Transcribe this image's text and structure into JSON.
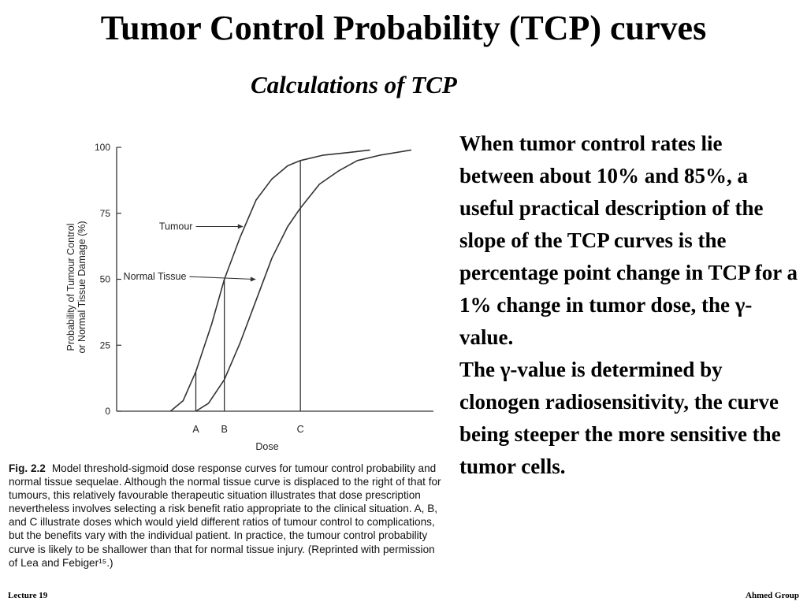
{
  "slide": {
    "title": "Tumor Control Probability (TCP) curves",
    "subtitle": "Calculations of TCP",
    "paragraphs": [
      "When tumor control rates lie between about 10% and 85%, a useful practical description of the slope of the TCP curves is the percentage point change in TCP for a 1% change in tumor dose, the γ-value.",
      "The γ-value is determined by clonogen radiosensitivity, the curve being steeper the more sensitive the tumor cells."
    ],
    "footer_left": "Lecture 19",
    "footer_right": "Ahmed Group"
  },
  "figure": {
    "caption_label": "Fig. 2.2",
    "caption_text": "Model threshold-sigmoid dose response curves for tumour control probability and normal tissue sequelae. Although the normal tissue curve is displaced to the right of that for tumours, this relatively favourable therapeutic situation illustrates that dose prescription nevertheless involves selecting a risk benefit ratio appropriate to the clinical situation. A, B, and C illustrate doses which would yield different ratios of tumour control to complications, but the benefits vary with the individual patient. In practice, the tumour control probability curve is likely to be shallower than that for normal tissue injury. (Reprinted with permission of Lea and Febiger¹⁵.)"
  },
  "chart_data": {
    "type": "line",
    "ylabel": "Probability of Tumour Control or Normal Tissue Damage (%)",
    "xlabel": "Dose",
    "ylim": [
      0,
      100
    ],
    "yticks": [
      0,
      25,
      50,
      75,
      100
    ],
    "xticks": [
      "A",
      "B",
      "C"
    ],
    "x_values": {
      "A": 2.5,
      "B": 3.4,
      "C": 5.8
    },
    "xlim": [
      0,
      10
    ],
    "grid": false,
    "series": [
      {
        "name": "Tumour",
        "x": [
          1.7,
          2.1,
          2.5,
          3.0,
          3.4,
          3.9,
          4.4,
          4.9,
          5.4,
          5.8,
          6.5,
          7.3,
          8.0
        ],
        "y": [
          0,
          4,
          15,
          33,
          50,
          66,
          80,
          88,
          93,
          95,
          97,
          98,
          99
        ],
        "label_anchor": [
          4.0,
          70
        ]
      },
      {
        "name": "Normal Tissue",
        "x": [
          2.5,
          2.9,
          3.4,
          3.9,
          4.4,
          4.9,
          5.4,
          5.8,
          6.4,
          7.0,
          7.6,
          8.3,
          9.3
        ],
        "y": [
          0,
          3,
          12,
          26,
          42,
          58,
          70,
          77,
          86,
          91,
          95,
          97,
          99
        ],
        "label_anchor": [
          4.4,
          50
        ]
      }
    ],
    "line_color": "#333333"
  }
}
